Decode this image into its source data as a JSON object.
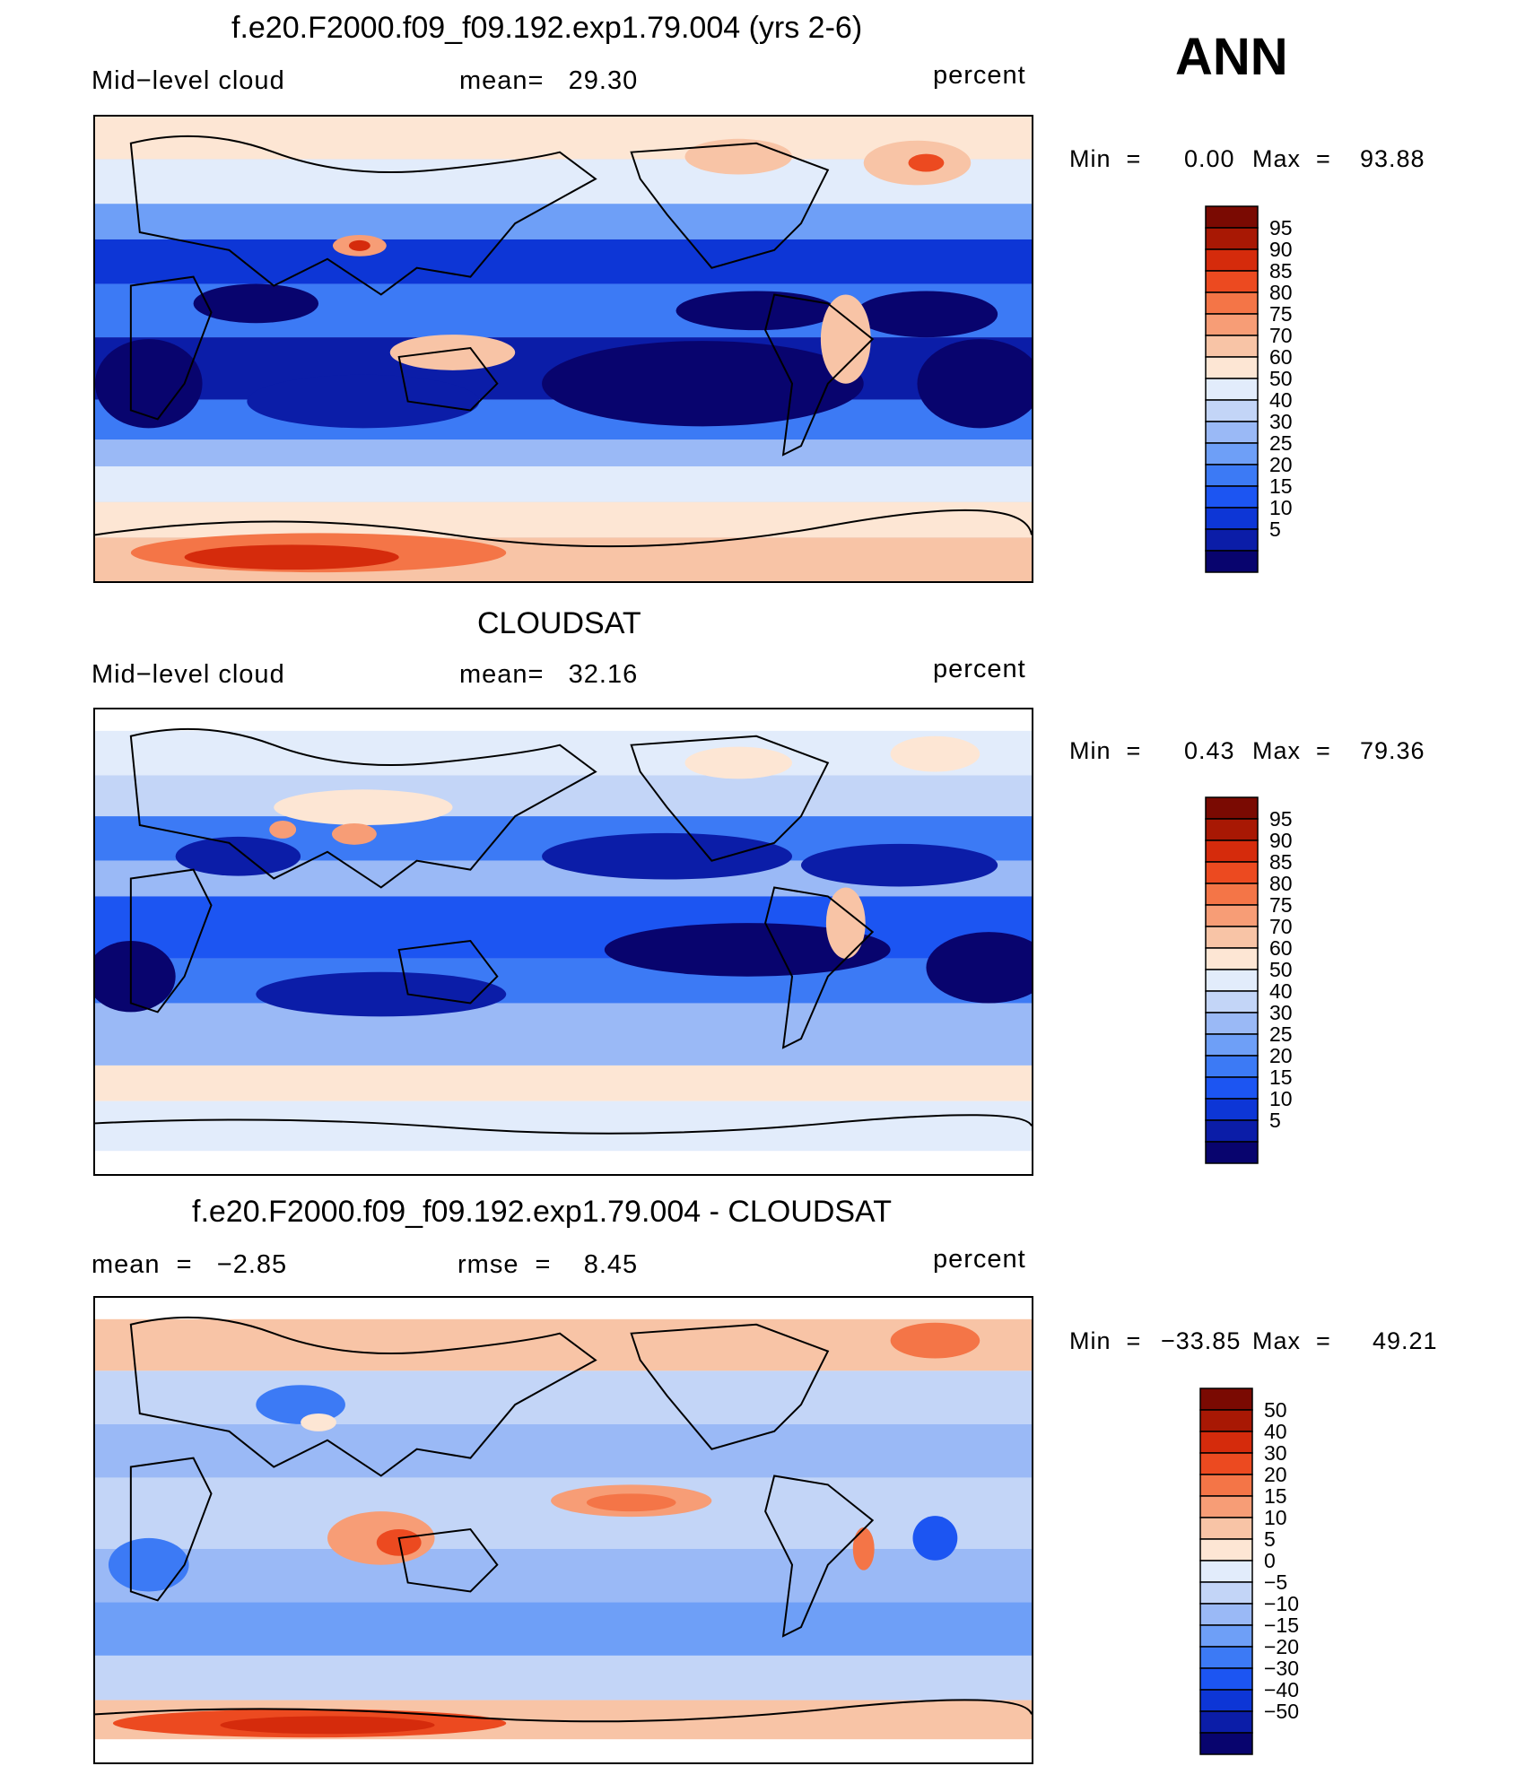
{
  "season": "ANN",
  "units": "percent",
  "colors": {
    "abs": [
      "#08046e",
      "#0b1da8",
      "#0d36d6",
      "#1c55f2",
      "#3c7af5",
      "#6e9ff7",
      "#9ab9f6",
      "#c3d5f7",
      "#e2ecfb",
      "#fde6d4",
      "#f8c4a6",
      "#f79d76",
      "#f47547",
      "#ec4a20",
      "#d52b0c",
      "#a81804",
      "#7a0a02"
    ],
    "diff": [
      "#08046e",
      "#0b1da8",
      "#0d36d6",
      "#1c55f2",
      "#3c7af5",
      "#6e9ff7",
      "#9ab9f6",
      "#c3d5f7",
      "#e2ecfb",
      "#fde6d4",
      "#f8c4a6",
      "#f79d76",
      "#f47547",
      "#ec4a20",
      "#d52b0c",
      "#a81804",
      "#7a0a02"
    ],
    "coast": "#000000"
  },
  "panels": [
    {
      "title": "f.e20.F2000.f09_f09.192.exp1.79.004 (yrs 2-6)",
      "left_label": "Mid−level cloud",
      "center_label": "mean=   29.30",
      "right_label": "percent",
      "min_label": "Min  =",
      "min_value": "0.00",
      "max_label": "Max  =",
      "max_value": "93.88",
      "levels": [
        "95",
        "90",
        "85",
        "80",
        "75",
        "70",
        "60",
        "50",
        "40",
        "30",
        "25",
        "20",
        "15",
        "10",
        "5"
      ]
    },
    {
      "title": "CLOUDSAT",
      "left_label": "Mid−level cloud",
      "center_label": "mean=   32.16",
      "right_label": "percent",
      "min_label": "Min  =",
      "min_value": "0.43",
      "max_label": "Max  =",
      "max_value": "79.36",
      "levels": [
        "95",
        "90",
        "85",
        "80",
        "75",
        "70",
        "60",
        "50",
        "40",
        "30",
        "25",
        "20",
        "15",
        "10",
        "5"
      ]
    },
    {
      "title": "f.e20.F2000.f09_f09.192.exp1.79.004 - CLOUDSAT",
      "left_label": "mean  =   −2.85",
      "center_label": "rmse  =    8.45",
      "right_label": "percent",
      "min_label": "Min  =",
      "min_value": "−33.85",
      "max_label": "Max  =",
      "max_value": "49.21",
      "levels": [
        "50",
        "40",
        "30",
        "20",
        "15",
        "10",
        "5",
        "0",
        "−5",
        "−10",
        "−15",
        "−20",
        "−30",
        "−40",
        "−50"
      ]
    }
  ],
  "chart_data": [
    {
      "type": "heatmap",
      "title": "f.e20.F2000.f09_f09.192.exp1.79.004 (yrs 2-6)",
      "variable": "Mid−level cloud",
      "units": "percent",
      "mean": 29.3,
      "min": 0.0,
      "max": 93.88,
      "contour_levels": [
        5,
        10,
        15,
        20,
        25,
        30,
        40,
        50,
        60,
        70,
        75,
        80,
        85,
        90,
        95
      ],
      "projection": "global cylindrical equidistant, Pacific-centered"
    },
    {
      "type": "heatmap",
      "title": "CLOUDSAT",
      "variable": "Mid−level cloud",
      "units": "percent",
      "mean": 32.16,
      "min": 0.43,
      "max": 79.36,
      "contour_levels": [
        5,
        10,
        15,
        20,
        25,
        30,
        40,
        50,
        60,
        70,
        75,
        80,
        85,
        90,
        95
      ],
      "projection": "global cylindrical equidistant, Pacific-centered"
    },
    {
      "type": "heatmap",
      "title": "f.e20.F2000.f09_f09.192.exp1.79.004 - CLOUDSAT",
      "units": "percent",
      "mean": -2.85,
      "rmse": 8.45,
      "min": -33.85,
      "max": 49.21,
      "contour_levels": [
        -50,
        -40,
        -30,
        -20,
        -15,
        -10,
        -5,
        0,
        5,
        10,
        15,
        20,
        30,
        40,
        50
      ],
      "projection": "global cylindrical equidistant, Pacific-centered"
    }
  ]
}
